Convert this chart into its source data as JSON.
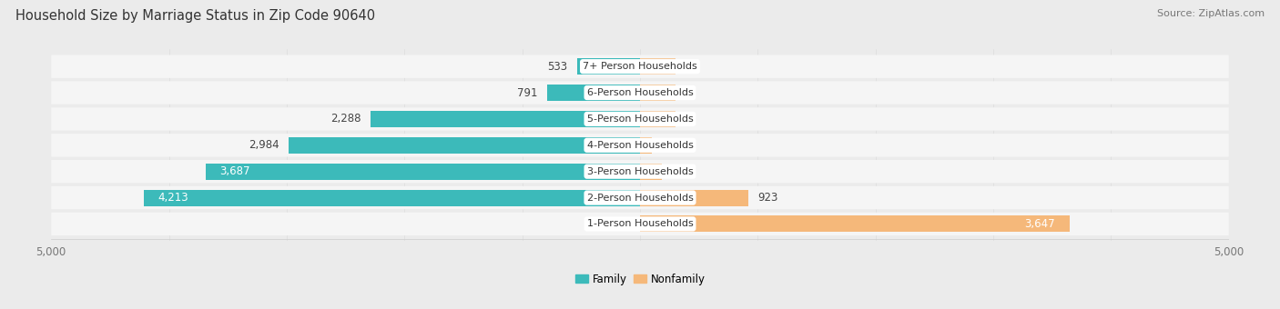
{
  "title": "Household Size by Marriage Status in Zip Code 90640",
  "source": "Source: ZipAtlas.com",
  "categories": [
    "7+ Person Households",
    "6-Person Households",
    "5-Person Households",
    "4-Person Households",
    "3-Person Households",
    "2-Person Households",
    "1-Person Households"
  ],
  "family_values": [
    533,
    791,
    2288,
    2984,
    3687,
    4213,
    0
  ],
  "nonfamily_values": [
    0,
    0,
    0,
    99,
    183,
    923,
    3647
  ],
  "family_color": "#3CBABA",
  "nonfamily_color": "#F5B87A",
  "xlim": 5000,
  "bg_color": "#EBEBEB",
  "row_bg_color": "#F5F5F5",
  "title_fontsize": 10.5,
  "label_fontsize": 8.5,
  "tick_fontsize": 8.5,
  "source_fontsize": 8
}
